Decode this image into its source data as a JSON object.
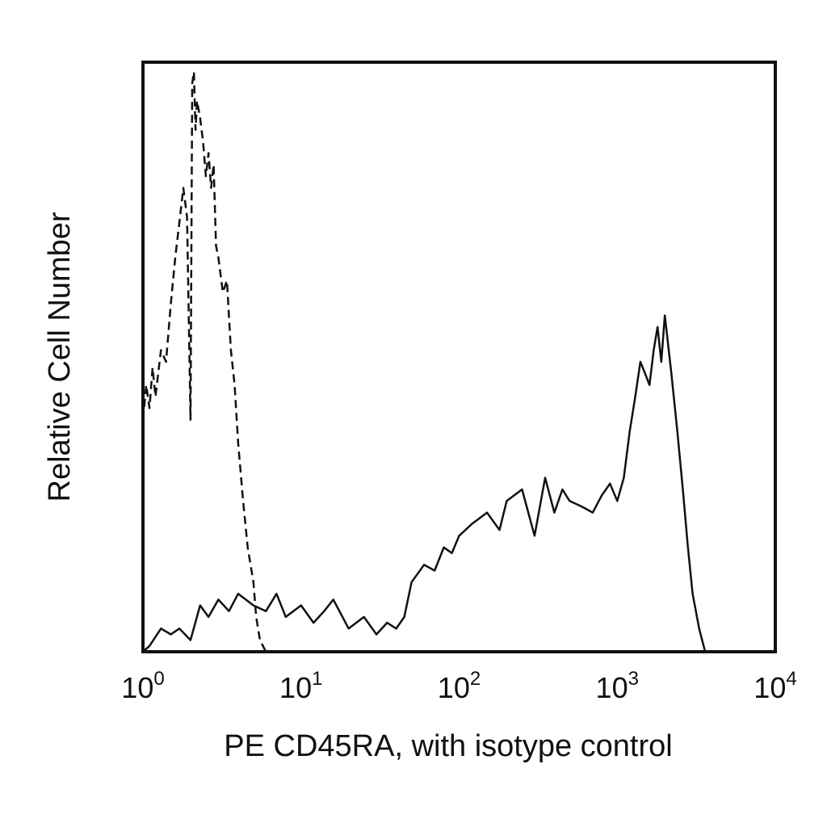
{
  "chart_data": {
    "type": "line",
    "title": "",
    "xlabel": "PE CD45RA, with isotype control",
    "ylabel": "Relative Cell Number",
    "x_scale": "log",
    "xlim": [
      1,
      10000
    ],
    "ylim": [
      0,
      100
    ],
    "grid": false,
    "legend": "none",
    "x_ticks": [
      {
        "base": "10",
        "exp": "0",
        "value": 1
      },
      {
        "base": "10",
        "exp": "1",
        "value": 10
      },
      {
        "base": "10",
        "exp": "2",
        "value": 100
      },
      {
        "base": "10",
        "exp": "3",
        "value": 1000
      },
      {
        "base": "10",
        "exp": "4",
        "value": 10000
      }
    ],
    "series": [
      {
        "style": "dashed",
        "color": "#111111",
        "x": [
          1.0,
          1.05,
          1.1,
          1.15,
          1.2,
          1.3,
          1.4,
          1.5,
          1.6,
          1.7,
          1.8,
          1.9,
          2.0,
          2.05,
          2.1,
          2.15,
          2.2,
          2.3,
          2.4,
          2.5,
          2.6,
          2.7,
          2.8,
          2.9,
          3.0,
          3.2,
          3.4,
          3.6,
          3.8,
          4.0,
          4.3,
          4.6,
          5.0,
          5.2,
          5.5,
          6.0,
          7.0
        ],
        "y": [
          40,
          46,
          42,
          49,
          44,
          52,
          50,
          60,
          68,
          74,
          80,
          75,
          40,
          98,
          100,
          90,
          95,
          92,
          88,
          82,
          86,
          80,
          84,
          70,
          68,
          62,
          64,
          52,
          46,
          36,
          26,
          18,
          12,
          6,
          2,
          0,
          0
        ]
      },
      {
        "style": "solid",
        "color": "#111111",
        "x": [
          1.0,
          1.1,
          1.3,
          1.5,
          1.7,
          2.0,
          2.3,
          2.6,
          3.0,
          3.5,
          4.0,
          5.0,
          6.0,
          7.0,
          8.0,
          10,
          12,
          14,
          16,
          20,
          25,
          30,
          35,
          40,
          45,
          50,
          60,
          70,
          80,
          90,
          100,
          120,
          150,
          180,
          200,
          250,
          300,
          350,
          400,
          450,
          500,
          600,
          700,
          800,
          900,
          1000,
          1100,
          1200,
          1300,
          1400,
          1500,
          1600,
          1700,
          1800,
          1900,
          2000,
          2200,
          2400,
          2600,
          2800,
          3000,
          3300,
          3600,
          4000,
          5000,
          10000
        ],
        "y": [
          0,
          1,
          4,
          3,
          4,
          2,
          8,
          6,
          9,
          7,
          10,
          8,
          7,
          10,
          6,
          8,
          5,
          7,
          9,
          4,
          6,
          3,
          5,
          4,
          6,
          12,
          15,
          14,
          18,
          17,
          20,
          22,
          24,
          21,
          26,
          28,
          20,
          30,
          24,
          28,
          26,
          25,
          24,
          27,
          29,
          26,
          30,
          38,
          44,
          50,
          48,
          46,
          52,
          56,
          50,
          58,
          48,
          38,
          28,
          18,
          10,
          4,
          0,
          0,
          0,
          0
        ]
      }
    ]
  }
}
